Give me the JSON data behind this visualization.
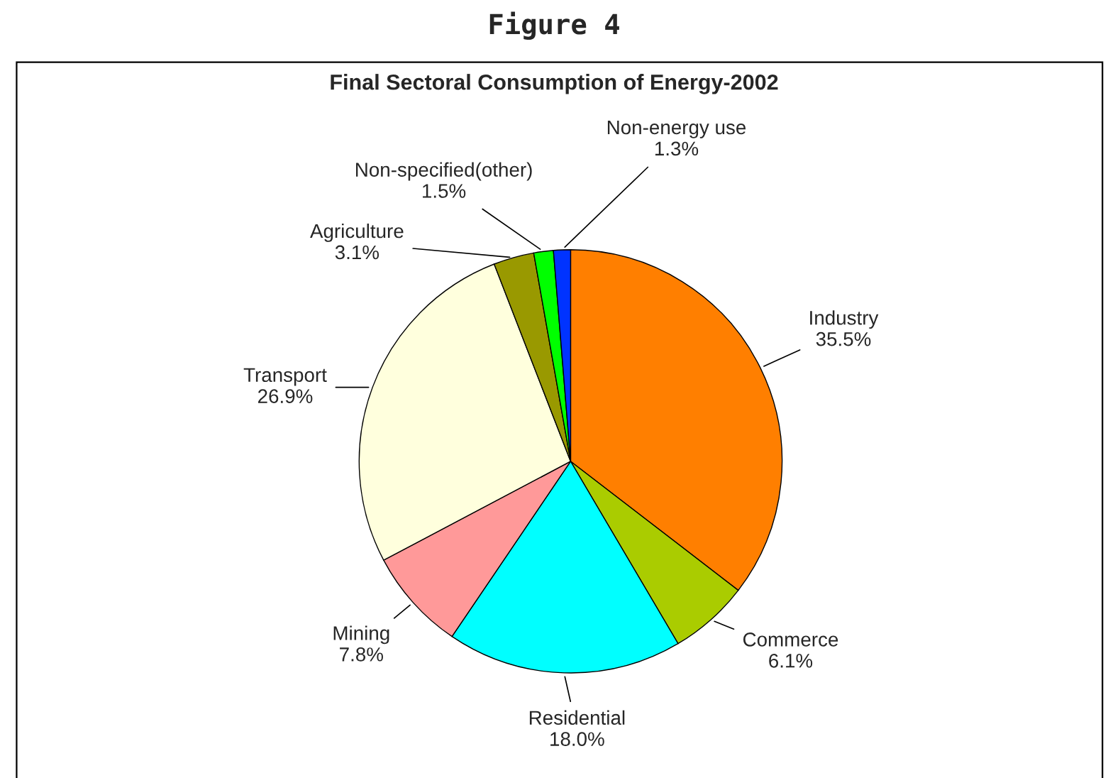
{
  "chart_data": {
    "type": "pie",
    "title": "Figure 4",
    "subtitle": "Final Sectoral Consumption of Energy-2002",
    "categories": [
      "Industry",
      "Commerce",
      "Residential",
      "Mining",
      "Transport",
      "Agriculture",
      "Non-specified(other)",
      "Non-energy use"
    ],
    "values": [
      35.5,
      6.1,
      18.0,
      7.8,
      26.9,
      3.1,
      1.5,
      1.3
    ],
    "value_labels": [
      "35.5%",
      "6.1%",
      "18.0%",
      "7.8%",
      "26.9%",
      "3.1%",
      "1.5%",
      "1.3%"
    ],
    "colors": [
      "#ff7f00",
      "#aacc00",
      "#00ffff",
      "#ff9999",
      "#ffffdd",
      "#999900",
      "#00ff00",
      "#0033ff"
    ],
    "legend": false
  }
}
